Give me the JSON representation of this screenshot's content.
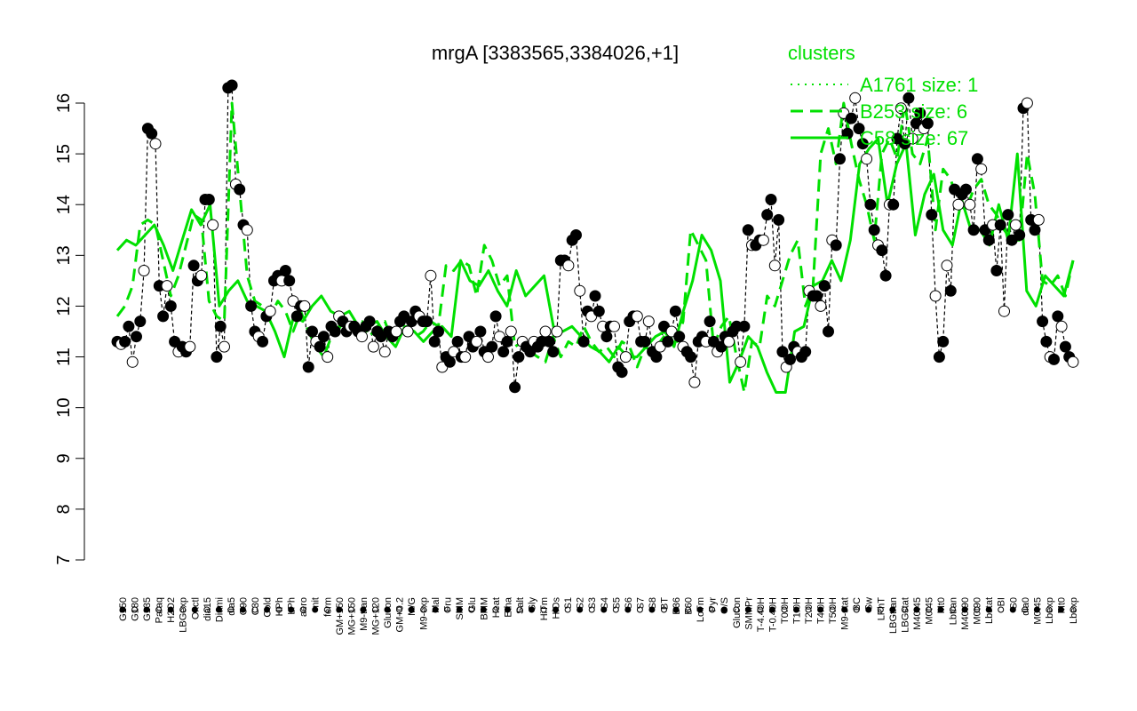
{
  "chart_data": {
    "type": "line",
    "title": "mrgA [3383565,3384026,+1]",
    "ylim": [
      7,
      16.5
    ],
    "yticks": [
      7,
      8,
      9,
      10,
      11,
      12,
      13,
      14,
      15,
      16
    ],
    "x_tick_labels": [
      "G150",
      "G180",
      "G135",
      "Paraq",
      "H2O2",
      "LBGexp",
      "Oxctl",
      "dia15",
      "Diami",
      "dia5",
      "C90",
      "C30",
      "Cold",
      "HPh",
      "LPh",
      "aero",
      "nit",
      "ferm",
      "GM+150",
      "MG+150",
      "M9-tran",
      "MG+120",
      "Glucon",
      "GM+0.2",
      "M/G",
      "M9-exp",
      "Mal",
      "Fru",
      "SMM",
      "Glu",
      "BMM",
      "Heat",
      "Etha",
      "Salt",
      "Gly",
      "HiTm",
      "HiOs",
      "S1",
      "S2",
      "S3",
      "S4",
      "S5",
      "S6",
      "S7",
      "S8",
      "BT",
      "B36",
      "B60",
      "LoTm",
      "Pyr",
      "G/S",
      "Glucon",
      "SMMPr",
      "T-4.40H",
      "T-0.40H",
      "T0.0H",
      "T1.0H",
      "T2.0H",
      "T4.0H",
      "T5.0H",
      "M9-stat",
      "BC",
      "Sw",
      "LPhT",
      "LBGtran",
      "LBGstat",
      "M40t45",
      "M0t45",
      "Mt0",
      "Lbtran",
      "M40t90",
      "M0t90",
      "Lbstat",
      "BI",
      "S0",
      "dia0",
      "M0t45",
      "Lbexp",
      "Mt0",
      "Lbexp"
    ],
    "legend": {
      "title": "clusters",
      "position": "top-right",
      "entries": [
        {
          "label": "A1761 size: 1",
          "style": "dotted"
        },
        {
          "label": "B253 size: 6",
          "style": "dashed"
        },
        {
          "label": "C58 size: 67",
          "style": "solid"
        }
      ]
    },
    "series": [
      {
        "name": "A1761 size: 1",
        "values": [
          11.3,
          11.25,
          11.3,
          11.6,
          10.9,
          11.4,
          11.7,
          12.7,
          15.5,
          15.4,
          15.2,
          12.4,
          11.8,
          12.4,
          12.0,
          11.3,
          11.1,
          11.2,
          11.1,
          11.2,
          12.8,
          12.5,
          12.6,
          14.1,
          14.1,
          13.6,
          11.0,
          11.6,
          11.2,
          16.3,
          16.35,
          14.4,
          14.3,
          13.6,
          13.5,
          12.0,
          11.5,
          11.4,
          11.3,
          11.8,
          11.9,
          12.5,
          12.6,
          12.5,
          12.7,
          12.5,
          12.1,
          11.8,
          12.0,
          12.0,
          10.8,
          11.5,
          11.3,
          11.2,
          11.4,
          11.0,
          11.6,
          11.5,
          11.8,
          11.7,
          11.5,
          11.6,
          11.6,
          11.5,
          11.4,
          11.6,
          11.7,
          11.2,
          11.5,
          11.4,
          11.1,
          11.5,
          11.4,
          11.5,
          11.7,
          11.8,
          11.5,
          11.7,
          11.9,
          11.8,
          11.7,
          11.7,
          12.6,
          11.3,
          11.5,
          10.8,
          11.0,
          10.9,
          11.1,
          11.3,
          11.0,
          11.0,
          11.4,
          11.2,
          11.3,
          11.5,
          11.1,
          11.0,
          11.2,
          11.8,
          11.4,
          11.1,
          11.3,
          11.5,
          10.4,
          11.0,
          11.3,
          11.2,
          11.1,
          11.3,
          11.2,
          11.3,
          11.5,
          11.3,
          11.1,
          11.5,
          12.9,
          12.9,
          12.8,
          13.3,
          13.4,
          12.3,
          11.3,
          11.9,
          11.8,
          12.2,
          11.9,
          11.6,
          11.4,
          11.6,
          11.6,
          10.8,
          10.7,
          11.0,
          11.7,
          11.8,
          11.8,
          11.3,
          11.3,
          11.7,
          11.1,
          11.0,
          11.2,
          11.6,
          11.3,
          11.5,
          11.9,
          11.4,
          11.2,
          11.1,
          11.0,
          10.5,
          11.3,
          11.4,
          11.3,
          11.7,
          11.3,
          11.1,
          11.2,
          11.4,
          11.3,
          11.5,
          11.6,
          10.9,
          11.6,
          13.5,
          13.2,
          13.2,
          13.3,
          13.3,
          13.8,
          14.1,
          12.8,
          13.7,
          11.1,
          10.8,
          10.95,
          11.2,
          11.1,
          11.0,
          11.1,
          12.3,
          12.2,
          12.2,
          12.0,
          12.4,
          11.5,
          13.3,
          13.2,
          14.9,
          15.8,
          15.4,
          15.7,
          16.1,
          15.5,
          15.2,
          14.9,
          14.0,
          13.5,
          13.2,
          13.1,
          12.6,
          14.0,
          14.0,
          15.3,
          15.9,
          15.2,
          16.1,
          15.3,
          15.6,
          15.8,
          15.5,
          15.6,
          13.8,
          12.2,
          11.0,
          11.3,
          12.8,
          12.3,
          14.3,
          14.0,
          14.2,
          14.3,
          14.0,
          13.5,
          14.9,
          14.7,
          13.5,
          13.3,
          13.6,
          12.7,
          13.6,
          11.9,
          13.8,
          13.3,
          13.6,
          13.4,
          15.9,
          16.0,
          13.7,
          13.5,
          13.7,
          11.7,
          11.3,
          11.0,
          10.95,
          11.8,
          11.6,
          11.2,
          11.0,
          10.9
        ]
      },
      {
        "name": "B253 size: 6",
        "values": [
          11.8,
          12.0,
          12.4,
          13.6,
          13.7,
          13.6,
          12.9,
          12.2,
          12.6,
          13.2,
          13.8,
          13.7,
          12.1,
          11.8,
          11.7,
          16.0,
          14.3,
          12.6,
          12.1,
          12.0,
          11.8,
          12.1,
          11.9,
          11.5,
          11.9,
          11.5,
          11.2,
          11.0,
          11.4,
          11.6,
          11.5,
          11.7,
          11.7,
          11.4,
          11.6,
          11.7,
          11.3,
          11.5,
          11.6,
          11.4,
          11.5,
          11.7,
          11.6,
          12.8,
          12.7,
          12.9,
          12.8,
          12.2,
          13.2,
          12.9,
          12.4,
          12.6,
          11.2,
          11.3,
          11.1,
          11.0,
          10.9,
          11.4,
          11.0,
          11.3,
          11.2,
          11.6,
          11.3,
          11.1,
          11.2,
          11.0,
          11.3,
          11.2,
          10.8,
          11.2,
          11.1,
          11.3,
          11.5,
          11.2,
          11.7,
          13.5,
          13.2,
          12.9,
          11.2,
          11.6,
          11.8,
          11.0,
          10.3,
          11.3,
          11.2,
          12.2,
          12.0,
          12.5,
          13.0,
          13.3,
          12.0,
          12.4,
          15.0,
          15.5,
          14.8,
          16.0,
          15.2,
          14.5,
          14.0,
          13.3,
          15.0,
          15.3,
          14.9,
          16.0,
          15.0,
          14.8,
          15.3,
          13.5,
          14.7,
          14.5,
          14.0,
          13.9,
          14.3,
          14.5,
          14.0,
          13.8,
          13.5,
          13.3,
          13.3,
          15.0,
          14.2,
          12.5,
          12.4,
          12.6,
          12.2,
          12.9
        ]
      },
      {
        "name": "C58 size: 67",
        "values": [
          13.1,
          13.3,
          13.2,
          13.4,
          13.6,
          13.2,
          12.7,
          13.3,
          13.9,
          13.6,
          14.0,
          12.0,
          12.3,
          12.5,
          12.1,
          12.0,
          11.9,
          11.5,
          11.0,
          11.8,
          11.7,
          12.0,
          12.2,
          11.9,
          11.8,
          11.9,
          11.6,
          11.6,
          11.7,
          11.4,
          11.2,
          11.6,
          11.5,
          11.3,
          11.5,
          11.6,
          11.4,
          12.9,
          12.5,
          12.4,
          12.7,
          12.3,
          12.0,
          12.7,
          12.2,
          12.4,
          12.6,
          11.6,
          11.5,
          11.6,
          11.4,
          11.2,
          11.1,
          10.9,
          11.2,
          11.0,
          11.0,
          11.2,
          11.4,
          11.5,
          11.2,
          11.9,
          12.5,
          13.4,
          13.1,
          12.5,
          10.5,
          10.9,
          11.4,
          11.2,
          10.7,
          10.3,
          10.3,
          11.5,
          11.6,
          12.4,
          12.5,
          12.9,
          12.5,
          13.3,
          14.8,
          15.1,
          15.3,
          14.0,
          14.8,
          15.2,
          13.4,
          14.2,
          14.6,
          13.5,
          13.2,
          14.1,
          13.5,
          13.5,
          13.2,
          14.0,
          13.3,
          15.0,
          12.3,
          12.0,
          12.6,
          12.4,
          12.2,
          12.9
        ]
      }
    ]
  }
}
